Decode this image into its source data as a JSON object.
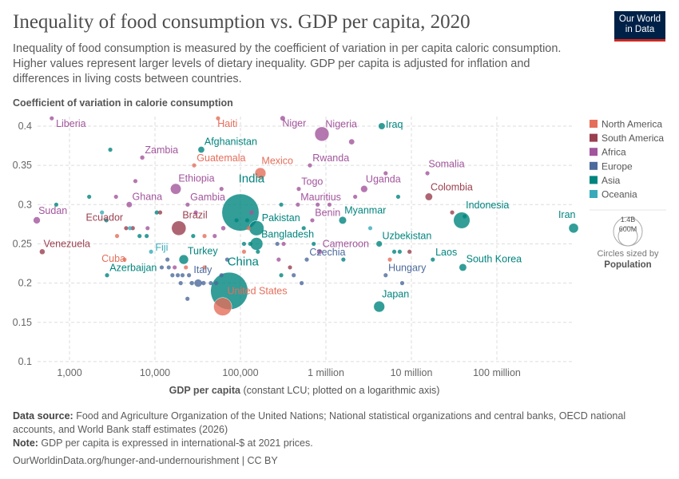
{
  "header": {
    "title": "Inequality of food consumption vs. GDP per capita, 2020",
    "subtitle": "Inequality of food consumption is measured by the coefficient of variation in per capita caloric consumption. Higher values represent larger levels of dietary inequality. GDP per capita is adjusted for inflation and differences in living costs between countries.",
    "logo": "Our World in Data"
  },
  "footer": {
    "source_label": "Data source:",
    "source": " Food and Agriculture Organization of the United Nations; National statistical organizations and central banks, OECD national accounts, and World Bank staff estimates (2026)",
    "note_label": "Note:",
    "note": " GDP per capita is expressed in international-$ at 2021 prices.",
    "url": "OurWorldinData.org/hunger-and-undernourishment | CC BY"
  },
  "chart_data": {
    "type": "scatter",
    "ylabel": "Coefficient of variation in calorie consumption",
    "xlabel_bold": "GDP per capita",
    "xlabel_rest": " (constant LCU; plotted on a logarithmic axis)",
    "x_scale": "log",
    "xlim": [
      420,
      800000000
    ],
    "ylim": [
      0.1,
      0.41
    ],
    "x_ticks": [
      {
        "v": 1000,
        "label": "1,000"
      },
      {
        "v": 10000,
        "label": "10,000"
      },
      {
        "v": 100000,
        "label": "100,000"
      },
      {
        "v": 1000000,
        "label": "1 million"
      },
      {
        "v": 10000000,
        "label": "10 million"
      },
      {
        "v": 100000000,
        "label": "100 million"
      }
    ],
    "y_ticks": [
      {
        "v": 0.1,
        "label": "0.1"
      },
      {
        "v": 0.15,
        "label": "0.15"
      },
      {
        "v": 0.2,
        "label": "0.2"
      },
      {
        "v": 0.25,
        "label": "0.25"
      },
      {
        "v": 0.3,
        "label": "0.3"
      },
      {
        "v": 0.35,
        "label": "0.35"
      },
      {
        "v": 0.4,
        "label": "0.4"
      }
    ],
    "grid": true,
    "legend_position": "right",
    "regions": [
      {
        "name": "North America",
        "color": "#e56e5a"
      },
      {
        "name": "South America",
        "color": "#9a3f4f"
      },
      {
        "name": "Africa",
        "color": "#a2559c"
      },
      {
        "name": "Europe",
        "color": "#4c6a9c"
      },
      {
        "name": "Asia",
        "color": "#00847e"
      },
      {
        "name": "Oceania",
        "color": "#38aaba"
      }
    ],
    "size_legend": {
      "title": "Circles sized by",
      "variable": "Population",
      "values": [
        "1.4B",
        "600M"
      ]
    },
    "points": [
      {
        "label": "Liberia",
        "region": "Africa",
        "x": 620,
        "y": 0.41,
        "pop": 5
      },
      {
        "label": "Haiti",
        "region": "North America",
        "x": 54700,
        "y": 0.41,
        "pop": 11
      },
      {
        "label": "Niger",
        "region": "Africa",
        "x": 312000,
        "y": 0.41,
        "pop": 24
      },
      {
        "label": "Nigeria",
        "region": "Africa",
        "x": 897000,
        "y": 0.39,
        "pop": 208
      },
      {
        "label": "Iraq",
        "region": "Asia",
        "x": 4500000,
        "y": 0.4,
        "pop": 42
      },
      {
        "label": "Afghanistan",
        "region": "Asia",
        "x": 34800,
        "y": 0.37,
        "pop": 39
      },
      {
        "label": "Zambia",
        "region": "Africa",
        "x": 7100,
        "y": 0.36,
        "pop": 19
      },
      {
        "label": "Guatemala",
        "region": "North America",
        "x": 28700,
        "y": 0.35,
        "pop": 17
      },
      {
        "label": "Mexico",
        "region": "North America",
        "x": 171000,
        "y": 0.34,
        "pop": 126
      },
      {
        "label": "Rwanda",
        "region": "Africa",
        "x": 650000,
        "y": 0.35,
        "pop": 13
      },
      {
        "label": "Somalia",
        "region": "Africa",
        "x": 15400000,
        "y": 0.34,
        "pop": 16
      },
      {
        "label": "Ethiopia",
        "region": "Africa",
        "x": 17500,
        "y": 0.32,
        "pop": 117
      },
      {
        "label": "Togo",
        "region": "Africa",
        "x": 481000,
        "y": 0.32,
        "pop": 8
      },
      {
        "label": "Uganda",
        "region": "Africa",
        "x": 2800000,
        "y": 0.32,
        "pop": 45
      },
      {
        "label": "India",
        "region": "Asia",
        "x": 100000,
        "y": 0.29,
        "pop": 1400
      },
      {
        "label": "Colombia",
        "region": "South America",
        "x": 16000000,
        "y": 0.31,
        "pop": 51
      },
      {
        "label": "Ghana",
        "region": "Africa",
        "x": 5000,
        "y": 0.3,
        "pop": 32
      },
      {
        "label": "Gambia",
        "region": "Africa",
        "x": 24100,
        "y": 0.3,
        "pop": 2.5
      },
      {
        "label": "Mauritius",
        "region": "Africa",
        "x": 470000,
        "y": 0.3,
        "pop": 1.3
      },
      {
        "label": "Sudan",
        "region": "Africa",
        "x": 414,
        "y": 0.28,
        "pop": 45
      },
      {
        "label": "Ecuador",
        "region": "South America",
        "x": 5500,
        "y": 0.27,
        "pop": 18
      },
      {
        "label": "Brazil",
        "region": "South America",
        "x": 19000,
        "y": 0.27,
        "pop": 213
      },
      {
        "label": "Pakistan",
        "region": "Asia",
        "x": 154000,
        "y": 0.27,
        "pop": 227
      },
      {
        "label": "Benin",
        "region": "Africa",
        "x": 693000,
        "y": 0.28,
        "pop": 12
      },
      {
        "label": "Myanmar",
        "region": "Asia",
        "x": 1570000,
        "y": 0.28,
        "pop": 54
      },
      {
        "label": "Indonesia",
        "region": "Asia",
        "x": 38800000,
        "y": 0.28,
        "pop": 274
      },
      {
        "label": "Iran",
        "region": "Asia",
        "x": 790000000,
        "y": 0.27,
        "pop": 88
      },
      {
        "label": "Bangladesh",
        "region": "Asia",
        "x": 154000,
        "y": 0.25,
        "pop": 167
      },
      {
        "label": "Venezuela",
        "region": "South America",
        "x": 480,
        "y": 0.24,
        "pop": 28
      },
      {
        "label": "Fiji",
        "region": "Oceania",
        "x": 9000,
        "y": 0.24,
        "pop": 0.9
      },
      {
        "label": "Cuba",
        "region": "North America",
        "x": 4400,
        "y": 0.23,
        "pop": 11
      },
      {
        "label": "Turkey",
        "region": "Asia",
        "x": 21700,
        "y": 0.23,
        "pop": 84
      },
      {
        "label": "Cameroon",
        "region": "Africa",
        "x": 841000,
        "y": 0.24,
        "pop": 27
      },
      {
        "label": "Uzbekistan",
        "region": "Asia",
        "x": 4200000,
        "y": 0.25,
        "pop": 34
      },
      {
        "label": "Czechia",
        "region": "Europe",
        "x": 597000,
        "y": 0.23,
        "pop": 10.7
      },
      {
        "label": "Laos",
        "region": "Asia",
        "x": 17800000,
        "y": 0.23,
        "pop": 7.3
      },
      {
        "label": "South Korea",
        "region": "Asia",
        "x": 40000000,
        "y": 0.22,
        "pop": 52
      },
      {
        "label": "Hungary",
        "region": "Europe",
        "x": 5000000,
        "y": 0.21,
        "pop": 9.7
      },
      {
        "label": "Azerbaijan",
        "region": "Asia",
        "x": 2750,
        "y": 0.21,
        "pop": 10
      },
      {
        "label": "Italy",
        "region": "Europe",
        "x": 32000,
        "y": 0.2,
        "pop": 59
      },
      {
        "label": "China",
        "region": "Asia",
        "x": 74000,
        "y": 0.19,
        "pop": 1420
      },
      {
        "label": "United States",
        "region": "North America",
        "x": 62000,
        "y": 0.17,
        "pop": 335
      },
      {
        "label": "Japan",
        "region": "Asia",
        "x": 4200000,
        "y": 0.17,
        "pop": 125
      },
      {
        "region": "Asia",
        "x": 3000,
        "y": 0.37,
        "pop": 3
      },
      {
        "region": "Asia",
        "x": 1700,
        "y": 0.31,
        "pop": 3
      },
      {
        "region": "Asia",
        "x": 700,
        "y": 0.3,
        "pop": 3
      },
      {
        "region": "Africa",
        "x": 3500,
        "y": 0.31,
        "pop": 3
      },
      {
        "region": "Oceania",
        "x": 2400,
        "y": 0.29,
        "pop": 1
      },
      {
        "region": "Asia",
        "x": 2700,
        "y": 0.28,
        "pop": 3
      },
      {
        "region": "North America",
        "x": 3600,
        "y": 0.26,
        "pop": 2
      },
      {
        "region": "South America",
        "x": 4600,
        "y": 0.27,
        "pop": 2
      },
      {
        "region": "Oceania",
        "x": 5100,
        "y": 0.27,
        "pop": 1
      },
      {
        "region": "Asia",
        "x": 6600,
        "y": 0.26,
        "pop": 3
      },
      {
        "region": "Asia",
        "x": 8000,
        "y": 0.26,
        "pop": 3
      },
      {
        "region": "Asia",
        "x": 10500,
        "y": 0.29,
        "pop": 5
      },
      {
        "region": "South America",
        "x": 11500,
        "y": 0.29,
        "pop": 5
      },
      {
        "region": "Africa",
        "x": 5900,
        "y": 0.33,
        "pop": 3
      },
      {
        "region": "Africa",
        "x": 8200,
        "y": 0.27,
        "pop": 2
      },
      {
        "region": "Africa",
        "x": 30000,
        "y": 0.29,
        "pop": 3
      },
      {
        "region": "Asia",
        "x": 28000,
        "y": 0.26,
        "pop": 3
      },
      {
        "region": "North America",
        "x": 38000,
        "y": 0.26,
        "pop": 2
      },
      {
        "region": "Africa",
        "x": 50000,
        "y": 0.26,
        "pop": 2
      },
      {
        "region": "Africa",
        "x": 60000,
        "y": 0.32,
        "pop": 10
      },
      {
        "region": "Africa",
        "x": 63000,
        "y": 0.27,
        "pop": 20
      },
      {
        "region": "Asia",
        "x": 90000,
        "y": 0.28,
        "pop": 3
      },
      {
        "region": "Asia",
        "x": 120000,
        "y": 0.28,
        "pop": 3
      },
      {
        "region": "Africa",
        "x": 135000,
        "y": 0.29,
        "pop": 20
      },
      {
        "region": "North America",
        "x": 125000,
        "y": 0.27,
        "pop": 2
      },
      {
        "region": "Asia",
        "x": 110000,
        "y": 0.25,
        "pop": 2
      },
      {
        "region": "Asia",
        "x": 130000,
        "y": 0.25,
        "pop": 2
      },
      {
        "region": "North America",
        "x": 110000,
        "y": 0.24,
        "pop": 2
      },
      {
        "region": "Asia",
        "x": 160000,
        "y": 0.24,
        "pop": 2
      },
      {
        "region": "Europe",
        "x": 270000,
        "y": 0.25,
        "pop": 2
      },
      {
        "region": "Africa",
        "x": 320000,
        "y": 0.25,
        "pop": 2
      },
      {
        "region": "Africa",
        "x": 280000,
        "y": 0.23,
        "pop": 2
      },
      {
        "region": "Europe",
        "x": 70000,
        "y": 0.23,
        "pop": 5
      },
      {
        "region": "Europe",
        "x": 14000,
        "y": 0.23,
        "pop": 2
      },
      {
        "region": "Europe",
        "x": 12000,
        "y": 0.22,
        "pop": 2
      },
      {
        "region": "Europe",
        "x": 14500,
        "y": 0.22,
        "pop": 2
      },
      {
        "region": "Africa",
        "x": 17000,
        "y": 0.22,
        "pop": 2
      },
      {
        "region": "North America",
        "x": 23000,
        "y": 0.22,
        "pop": 2
      },
      {
        "region": "North America",
        "x": 38000,
        "y": 0.22,
        "pop": 2
      },
      {
        "region": "Europe",
        "x": 16000,
        "y": 0.21,
        "pop": 3
      },
      {
        "region": "Europe",
        "x": 18500,
        "y": 0.21,
        "pop": 3
      },
      {
        "region": "Europe",
        "x": 21000,
        "y": 0.21,
        "pop": 10
      },
      {
        "region": "Europe",
        "x": 25000,
        "y": 0.21,
        "pop": 3
      },
      {
        "region": "Europe",
        "x": 20000,
        "y": 0.2,
        "pop": 3
      },
      {
        "region": "Europe",
        "x": 27000,
        "y": 0.2,
        "pop": 20
      },
      {
        "region": "Europe",
        "x": 37000,
        "y": 0.2,
        "pop": 20
      },
      {
        "region": "Europe",
        "x": 45000,
        "y": 0.2,
        "pop": 10
      },
      {
        "region": "Europe",
        "x": 52000,
        "y": 0.2,
        "pop": 5
      },
      {
        "region": "Europe",
        "x": 60000,
        "y": 0.21,
        "pop": 5
      },
      {
        "region": "Europe",
        "x": 24000,
        "y": 0.18,
        "pop": 2
      },
      {
        "region": "Asia",
        "x": 300000,
        "y": 0.3,
        "pop": 3
      },
      {
        "region": "Africa",
        "x": 800000,
        "y": 0.3,
        "pop": 2
      },
      {
        "region": "Africa",
        "x": 1100000,
        "y": 0.3,
        "pop": 2
      },
      {
        "region": "Asia",
        "x": 550000,
        "y": 0.27,
        "pop": 3
      },
      {
        "region": "Asia",
        "x": 720000,
        "y": 0.25,
        "pop": 3
      },
      {
        "region": "Asia",
        "x": 300000,
        "y": 0.21,
        "pop": 3
      },
      {
        "region": "South America",
        "x": 380000,
        "y": 0.22,
        "pop": 2
      },
      {
        "region": "Europe",
        "x": 420000,
        "y": 0.21,
        "pop": 3
      },
      {
        "region": "Europe",
        "x": 520000,
        "y": 0.2,
        "pop": 2
      },
      {
        "region": "Asia",
        "x": 1600000,
        "y": 0.23,
        "pop": 3
      },
      {
        "region": "Africa",
        "x": 2000000,
        "y": 0.38,
        "pop": 30
      },
      {
        "region": "Africa",
        "x": 5000000,
        "y": 0.34,
        "pop": 3
      },
      {
        "region": "Africa",
        "x": 2200000,
        "y": 0.31,
        "pop": 3
      },
      {
        "region": "Asia",
        "x": 7000000,
        "y": 0.31,
        "pop": 3
      },
      {
        "region": "Oceania",
        "x": 3300000,
        "y": 0.27,
        "pop": 1
      },
      {
        "region": "Asia",
        "x": 6300000,
        "y": 0.24,
        "pop": 3
      },
      {
        "region": "Asia",
        "x": 7300000,
        "y": 0.24,
        "pop": 3
      },
      {
        "region": "South America",
        "x": 9500000,
        "y": 0.24,
        "pop": 3
      },
      {
        "region": "North America",
        "x": 5600000,
        "y": 0.23,
        "pop": 2
      },
      {
        "region": "Europe",
        "x": 7800000,
        "y": 0.2,
        "pop": 2
      },
      {
        "region": "South America",
        "x": 30000000,
        "y": 0.29,
        "pop": 3
      },
      {
        "region": "Asia",
        "x": 42000000,
        "y": 0.285,
        "pop": 3
      }
    ]
  }
}
